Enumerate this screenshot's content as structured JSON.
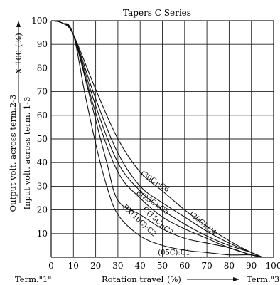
{
  "chart_data": {
    "type": "line",
    "title": "Tapers C Series",
    "xlabel": "Rotation travel",
    "xlabel_unit": "(%)",
    "ylabel_line1": "Output volt. across term.2-3",
    "ylabel_line2": "Input volt. across term. 1-3",
    "ylabel_suffix": "X 100 (%)",
    "x_ticks": [
      "0",
      "10",
      "20",
      "30",
      "40",
      "50",
      "60",
      "70",
      "80",
      "90",
      "100"
    ],
    "y_ticks": [
      "10",
      "20",
      "30",
      "40",
      "50",
      "60",
      "70",
      "80",
      "90",
      "100"
    ],
    "xlim": [
      0,
      100
    ],
    "ylim": [
      0,
      100
    ],
    "grid": true,
    "term_left": "Term.\"1\"",
    "term_right": "Term.\"3\"",
    "series": [
      {
        "name": "(30C):C6",
        "x": [
          0,
          5,
          10,
          20,
          30,
          40,
          50,
          60,
          70,
          80,
          90,
          95
        ],
        "y": [
          100,
          99,
          94,
          71,
          50,
          36,
          28,
          20,
          13,
          7,
          2,
          0
        ]
      },
      {
        "name": "(20C):C4",
        "x": [
          0,
          5,
          10,
          20,
          30,
          40,
          50,
          60,
          70,
          80,
          90,
          95
        ],
        "y": [
          100,
          99,
          94,
          67,
          44,
          30,
          23,
          17,
          11,
          6,
          2,
          0
        ]
      },
      {
        "name": "E(25C):C5",
        "x": [
          0,
          5,
          10,
          20,
          30,
          40,
          50,
          60,
          70,
          80,
          90,
          95
        ],
        "y": [
          100,
          99,
          94,
          64,
          40,
          28,
          20,
          14,
          9,
          5,
          2,
          0
        ]
      },
      {
        "name": "C(15C):C3",
        "x": [
          0,
          5,
          10,
          20,
          30,
          40,
          50,
          60,
          70,
          80,
          90,
          95
        ],
        "y": [
          100,
          99,
          94,
          61,
          36,
          25,
          17,
          12,
          8,
          4,
          1,
          0
        ]
      },
      {
        "name": "RX(10C):C2",
        "x": [
          0,
          5,
          10,
          20,
          25,
          30,
          40,
          50,
          60,
          70,
          80,
          90,
          95
        ],
        "y": [
          100,
          99,
          94,
          58,
          40,
          24,
          18,
          12,
          8,
          6,
          4,
          1,
          0
        ]
      },
      {
        "name": "(05C):C1",
        "x": [
          0,
          5,
          10,
          15,
          20,
          25,
          30,
          40,
          50,
          60,
          70,
          80,
          90,
          95
        ],
        "y": [
          100,
          99,
          94,
          70,
          48,
          30,
          18,
          9,
          5,
          3,
          2,
          1,
          1,
          0
        ]
      }
    ]
  }
}
